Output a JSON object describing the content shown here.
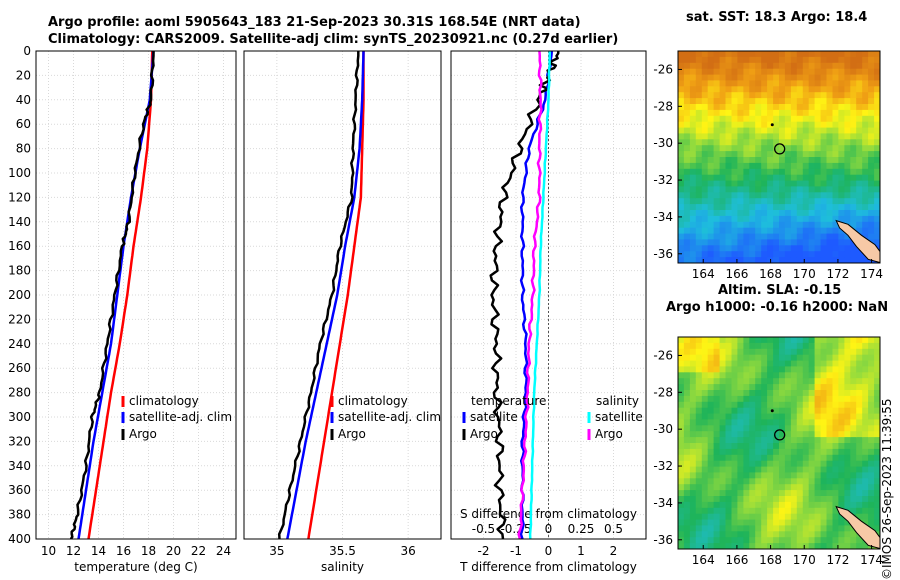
{
  "title_line1": "Argo profile: aoml 5905643_183 21-Sep-2023 30.31S 168.54E (NRT data)",
  "title_line2": "Climatology: CARS2009. Satellite-adj clim: synTS_20230921.nc (0.27d earlier)",
  "map_top_title": "sat. SST: 18.3 Argo: 18.4",
  "map_bottom_title_line1": "Altim. SLA: -0.15",
  "map_bottom_title_line2": "Argo h1000: -0.16 h2000: NaN",
  "footer_stamp": "©IMOS 26-Sep-2023 11:39:55",
  "colors": {
    "climatology": "#ff0000",
    "satellite": "#0000ff",
    "argo": "#000000",
    "sal_satellite": "#00ffff",
    "sal_argo": "#ff00ff"
  },
  "chart_data": [
    {
      "type": "line",
      "name": "temperature",
      "xlabel": "temperature (deg C)",
      "ylabel": "",
      "xlim": [
        9,
        25
      ],
      "ylim": [
        400,
        0
      ],
      "xticks": [
        10,
        12,
        14,
        16,
        18,
        20,
        22,
        24
      ],
      "yticks": [
        0,
        20,
        40,
        60,
        80,
        100,
        120,
        140,
        160,
        180,
        200,
        220,
        240,
        260,
        280,
        300,
        320,
        340,
        360,
        380,
        400
      ],
      "legend": [
        "climatology",
        "satellite-adj. clim",
        "Argo"
      ],
      "series": [
        {
          "name": "climatology",
          "depth": [
            0,
            40,
            80,
            120,
            160,
            200,
            240,
            280,
            320,
            360,
            400
          ],
          "values": [
            18.3,
            18.2,
            17.9,
            17.4,
            16.8,
            16.3,
            15.7,
            15.0,
            14.4,
            13.8,
            13.2
          ]
        },
        {
          "name": "satellite-adj. clim",
          "depth": [
            0,
            40,
            80,
            120,
            160,
            200,
            240,
            280,
            320,
            360,
            400
          ],
          "values": [
            18.4,
            18.1,
            17.3,
            16.6,
            16.0,
            15.5,
            15.0,
            14.3,
            13.6,
            13.0,
            12.4
          ]
        },
        {
          "name": "Argo",
          "depth": [
            0,
            40,
            60,
            100,
            140,
            160,
            200,
            240,
            280,
            300,
            340,
            380,
            400
          ],
          "values": [
            18.4,
            18.2,
            17.6,
            16.9,
            16.4,
            15.9,
            15.3,
            14.7,
            14.1,
            13.5,
            13.0,
            12.3,
            11.8
          ]
        }
      ]
    },
    {
      "type": "line",
      "name": "salinity",
      "xlabel": "salinity",
      "ylabel": "",
      "xlim": [
        34.75,
        36.25
      ],
      "ylim": [
        400,
        0
      ],
      "xticks": [
        35,
        35.5,
        36
      ],
      "legend": [
        "climatology",
        "satellite-adj. clim",
        "Argo"
      ],
      "series": [
        {
          "name": "climatology",
          "depth": [
            0,
            40,
            80,
            120,
            160,
            200,
            240,
            280,
            320,
            360,
            400
          ],
          "values": [
            35.66,
            35.66,
            35.65,
            35.64,
            35.59,
            35.54,
            35.48,
            35.42,
            35.36,
            35.3,
            35.24
          ]
        },
        {
          "name": "satellite-adj. clim",
          "depth": [
            0,
            40,
            80,
            120,
            160,
            200,
            240,
            280,
            320,
            360,
            400
          ],
          "values": [
            35.66,
            35.65,
            35.63,
            35.59,
            35.52,
            35.46,
            35.38,
            35.3,
            35.22,
            35.15,
            35.08
          ]
        },
        {
          "name": "Argo",
          "depth": [
            0,
            40,
            80,
            120,
            160,
            200,
            240,
            280,
            320,
            360,
            400
          ],
          "values": [
            35.62,
            35.6,
            35.58,
            35.57,
            35.48,
            35.42,
            35.33,
            35.26,
            35.18,
            35.1,
            35.02
          ]
        }
      ]
    },
    {
      "type": "line",
      "name": "difference",
      "xlabel": "T difference from climatology",
      "secondary_xlabel": "S difference from climatology",
      "xlim": [
        -3,
        3
      ],
      "ylim": [
        400,
        0
      ],
      "xticks": [
        -2,
        -1,
        0,
        1,
        2
      ],
      "secondary_xticks": [
        "-0.5",
        "-0.25",
        "0",
        "0.25",
        "0.5"
      ],
      "legend_temperature": {
        "heading": "temperature",
        "items": [
          "satellite",
          "Argo"
        ]
      },
      "legend_salinity": {
        "heading": "salinity",
        "items": [
          "satellite",
          "Argo"
        ]
      },
      "series": [
        {
          "name": "T satellite",
          "depth": [
            0,
            40,
            80,
            120,
            160,
            200,
            240,
            280,
            320,
            360,
            400
          ],
          "values": [
            0.1,
            -0.1,
            -0.6,
            -0.8,
            -0.8,
            -0.8,
            -0.7,
            -0.7,
            -0.8,
            -0.8,
            -0.8
          ]
        },
        {
          "name": "T Argo",
          "depth": [
            0,
            20,
            40,
            80,
            120,
            160,
            200,
            240,
            280,
            320,
            360,
            400
          ],
          "values": [
            0.3,
            0.0,
            -0.3,
            -0.9,
            -1.4,
            -1.6,
            -1.7,
            -1.6,
            -1.6,
            -1.5,
            -1.5,
            -1.4
          ]
        },
        {
          "name": "S satellite",
          "depth": [
            0,
            40,
            80,
            120,
            160,
            200,
            240,
            280,
            320,
            360,
            400
          ],
          "values": [
            0.01,
            0.0,
            -0.02,
            -0.04,
            -0.06,
            -0.07,
            -0.09,
            -0.11,
            -0.12,
            -0.13,
            -0.14
          ]
        },
        {
          "name": "S Argo",
          "depth": [
            0,
            40,
            80,
            120,
            160,
            200,
            240,
            280,
            320,
            360,
            400
          ],
          "values": [
            -0.07,
            -0.06,
            -0.07,
            -0.07,
            -0.11,
            -0.12,
            -0.15,
            -0.16,
            -0.18,
            -0.2,
            -0.22
          ]
        }
      ]
    },
    {
      "type": "heatmap",
      "name": "sst_map",
      "title": "sat. SST: 18.3 Argo: 18.4",
      "xlim": [
        162.5,
        174.5
      ],
      "ylim": [
        -36.5,
        -25
      ],
      "xticks": [
        164,
        166,
        168,
        170,
        172,
        174
      ],
      "yticks": [
        -26,
        -28,
        -30,
        -32,
        -34,
        -36
      ],
      "profile_location": {
        "lon": 168.54,
        "lat": -30.31
      }
    },
    {
      "type": "heatmap",
      "name": "sla_map",
      "title": "Altim. SLA: -0.15 / Argo h1000: -0.16 h2000: NaN",
      "xlim": [
        162.5,
        174.5
      ],
      "ylim": [
        -36.5,
        -25
      ],
      "xticks": [
        164,
        166,
        168,
        170,
        172,
        174
      ],
      "yticks": [
        -26,
        -28,
        -30,
        -32,
        -34,
        -36
      ],
      "profile_location": {
        "lon": 168.54,
        "lat": -30.31
      }
    }
  ]
}
